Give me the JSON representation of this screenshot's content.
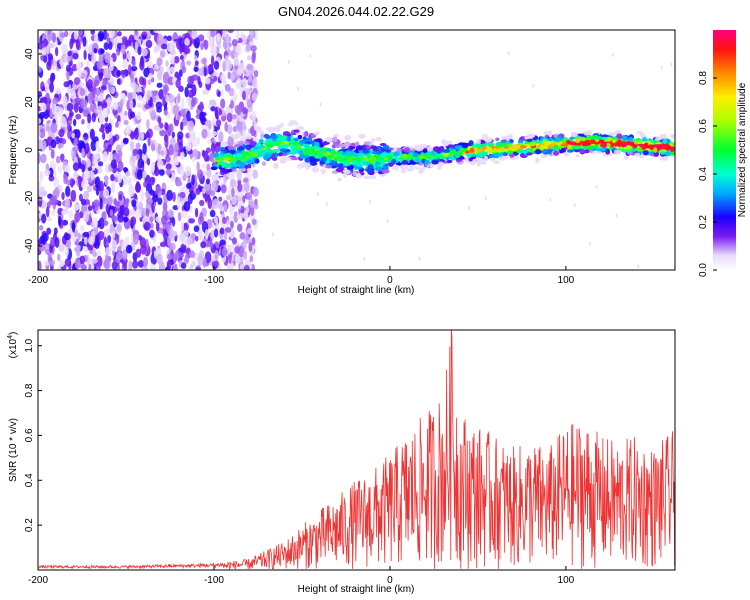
{
  "title": "GN04.2026.044.02.22.G29",
  "chart_data": [
    {
      "type": "heatmap",
      "xlabel": "Height of straight line (km)",
      "ylabel": "Frequency (Hz)",
      "xlim": [
        -200,
        162
      ],
      "ylim": [
        -50,
        50
      ],
      "x_ticks": [
        {
          "value": -200,
          "label": "-200"
        },
        {
          "value": -100,
          "label": "-100"
        },
        {
          "value": 0,
          "label": "0"
        },
        {
          "value": 100,
          "label": "100"
        }
      ],
      "y_ticks": [
        {
          "value": 40,
          "label": "40"
        },
        {
          "value": 20,
          "label": "20"
        },
        {
          "value": 0,
          "label": "0"
        },
        {
          "value": -20,
          "label": "-20"
        },
        {
          "value": -40,
          "label": "-40"
        }
      ],
      "noise_region_x": [
        -200,
        -80
      ],
      "signal_start_x": -100,
      "trend": {
        "x": [
          -100,
          -90,
          -80,
          -70,
          -60,
          -50,
          -40,
          -30,
          -20,
          -10,
          0,
          10,
          20,
          30,
          40,
          50,
          60,
          70,
          80,
          90,
          100,
          110,
          120,
          130,
          140,
          150,
          160
        ],
        "freq": [
          -4,
          -4,
          -2,
          1,
          3,
          1,
          -1,
          -3,
          -4,
          -4,
          -3,
          -3,
          -3,
          -2,
          -1,
          0,
          0.5,
          1,
          1.5,
          2,
          2.5,
          3,
          3,
          2.5,
          2,
          1.5,
          1
        ]
      },
      "colorbar": {
        "label": "Normalized spectral amplitude",
        "range": [
          0,
          1
        ],
        "ticks": [
          {
            "value": 0,
            "label": "0.0"
          },
          {
            "value": 0.2,
            "label": "0.2"
          },
          {
            "value": 0.4,
            "label": "0.4"
          },
          {
            "value": 0.6,
            "label": "0.6"
          },
          {
            "value": 0.8,
            "label": "0.8"
          }
        ]
      }
    },
    {
      "type": "line",
      "xlabel": "Height of straight line (km)",
      "ylabel": "SNR (10 * v/v)",
      "y_multiplier": "(x10",
      "y_multiplier_exp": "4",
      "y_multiplier_close": ")",
      "xlim": [
        -200,
        162
      ],
      "ylim": [
        0,
        1.07
      ],
      "x_ticks": [
        {
          "value": -200,
          "label": "-200"
        },
        {
          "value": -100,
          "label": "-100"
        },
        {
          "value": 0,
          "label": "0"
        },
        {
          "value": 100,
          "label": "100"
        }
      ],
      "y_ticks": [
        {
          "value": 0.2,
          "label": "0.2"
        },
        {
          "value": 0.4,
          "label": "0.4"
        },
        {
          "value": 0.6,
          "label": "0.6"
        },
        {
          "value": 0.8,
          "label": "0.8"
        },
        {
          "value": 1.0,
          "label": "1.0"
        }
      ],
      "series": [
        {
          "name": "SNR",
          "color": "#ee3333",
          "envelope_x": [
            -200,
            -150,
            -100,
            -80,
            -70,
            -60,
            -50,
            -40,
            -30,
            -20,
            -10,
            0,
            10,
            20,
            30,
            35,
            40,
            50,
            60,
            70,
            80,
            90,
            100,
            110,
            120,
            130,
            140,
            150,
            160
          ],
          "envelope_y": [
            0.02,
            0.02,
            0.03,
            0.05,
            0.09,
            0.13,
            0.2,
            0.27,
            0.33,
            0.4,
            0.45,
            0.52,
            0.62,
            0.7,
            0.8,
            1.07,
            0.72,
            0.65,
            0.6,
            0.55,
            0.58,
            0.55,
            0.65,
            0.68,
            0.6,
            0.58,
            0.6,
            0.55,
            0.62
          ],
          "peak": {
            "x": 35,
            "y": 1.07
          }
        }
      ]
    }
  ]
}
